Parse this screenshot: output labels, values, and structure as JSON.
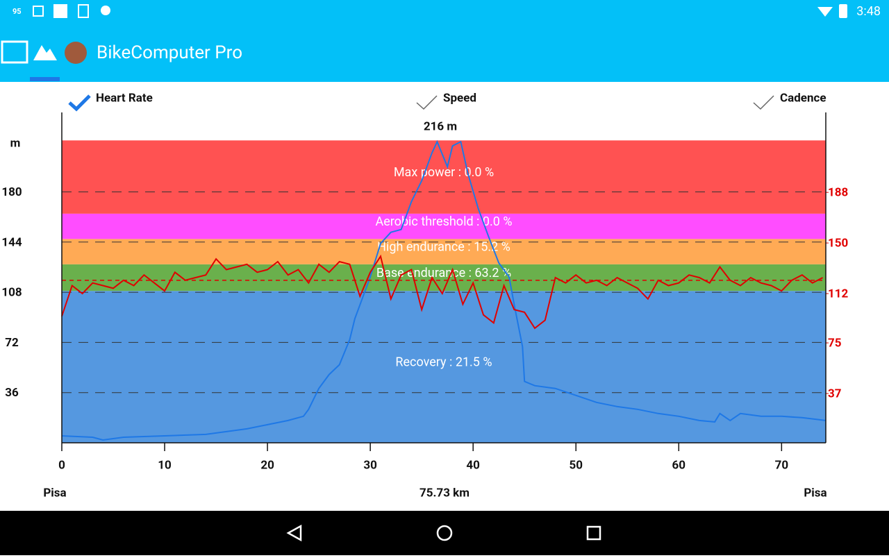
{
  "status_bar": {
    "battery": "95",
    "time": "3:48"
  },
  "app_bar": {
    "title": "BikeComputer Pro"
  },
  "toggles": [
    {
      "label": "Heart Rate",
      "checked": true
    },
    {
      "label": "Speed",
      "checked": false
    },
    {
      "label": "Cadence",
      "checked": false
    }
  ],
  "chart_data": {
    "type": "line",
    "ylabel": "m",
    "peak_label": "216 m",
    "xlabel": "75.73 km",
    "start_label": "Pisa",
    "end_label": "Pisa",
    "xlim": [
      0,
      74.3
    ],
    "xticks": [
      0,
      10,
      20,
      30,
      40,
      50,
      60,
      70
    ],
    "ylim": [
      0,
      237
    ],
    "yticks": [
      36,
      72,
      108,
      144,
      180
    ],
    "y2lim": [
      0,
      248
    ],
    "y2ticks": [
      37,
      75,
      112,
      150,
      188
    ],
    "y2color": "#e00000",
    "grid": true,
    "zones": [
      {
        "label": "Recovery : 21.5 %",
        "color": "#5598e0",
        "range": [
          0,
          114
        ]
      },
      {
        "label": "Base endurance : 63.2 %",
        "color": "#6ab04c",
        "range": [
          114,
          134
        ]
      },
      {
        "label": "High endurance : 15.2 %",
        "color": "#ffaa55",
        "range": [
          134,
          153
        ]
      },
      {
        "label": "Aerobic threshold : 0.0 %",
        "color": "#ff4dff",
        "range": [
          153,
          172
        ]
      },
      {
        "label": "Max power : 0.0 %",
        "color": "#ff5252",
        "range": [
          172,
          227
        ]
      }
    ],
    "hr_average": 122,
    "series": [
      {
        "name": "Elevation",
        "color": "#1e78e6",
        "x": [
          0,
          3,
          4,
          6,
          10,
          14,
          16,
          18,
          20,
          22,
          23.5,
          24,
          25,
          26,
          27,
          28,
          28.5,
          29,
          30,
          31,
          32,
          33,
          34,
          35,
          36,
          36.5,
          37.5,
          38,
          38.8,
          39.5,
          40.5,
          41.5,
          42.5,
          43.5,
          44,
          44.8,
          45,
          46,
          48,
          50,
          52,
          54,
          56,
          58,
          60,
          62,
          63.5,
          64,
          65,
          66,
          68,
          70,
          72,
          74.3
        ],
        "values": [
          5,
          4,
          2,
          4,
          5,
          6,
          8,
          10,
          13,
          16,
          19,
          24,
          39,
          49,
          56,
          74,
          89,
          99,
          119,
          143,
          151,
          153,
          173,
          188,
          208,
          216,
          198,
          213,
          216,
          193,
          168,
          148,
          129,
          119,
          99,
          69,
          44,
          41,
          39,
          34,
          29,
          26,
          24,
          21,
          19,
          16,
          15,
          21,
          16,
          21,
          19,
          19,
          18,
          16
        ]
      },
      {
        "name": "Heart Rate",
        "color": "#e00000",
        "axis": "y2",
        "x": [
          0,
          1,
          2,
          3,
          4,
          5,
          6,
          7,
          8,
          9,
          10,
          11,
          12,
          13,
          14,
          15,
          16,
          17,
          18,
          19,
          20,
          21,
          22,
          23,
          24,
          25,
          26,
          27,
          28,
          29,
          30,
          31,
          32,
          33,
          34,
          35,
          36,
          37,
          38,
          39,
          40,
          41,
          42,
          43,
          44,
          45,
          46,
          47,
          48,
          49,
          50,
          51,
          52,
          53,
          54,
          55,
          56,
          57,
          58,
          59,
          60,
          61,
          62,
          63,
          64,
          65,
          66,
          67,
          68,
          69,
          70,
          71,
          72,
          73,
          74
        ],
        "values": [
          95,
          118,
          112,
          120,
          118,
          116,
          122,
          118,
          126,
          120,
          114,
          128,
          122,
          124,
          126,
          138,
          130,
          132,
          134,
          128,
          130,
          136,
          126,
          130,
          120,
          134,
          128,
          136,
          134,
          110,
          128,
          140,
          108,
          126,
          130,
          100,
          124,
          112,
          130,
          104,
          120,
          96,
          90,
          118,
          100,
          98,
          86,
          92,
          124,
          120,
          126,
          120,
          122,
          118,
          124,
          120,
          116,
          108,
          122,
          118,
          120,
          126,
          124,
          120,
          132,
          122,
          118,
          124,
          120,
          118,
          114,
          122,
          126,
          120,
          124
        ]
      }
    ]
  }
}
